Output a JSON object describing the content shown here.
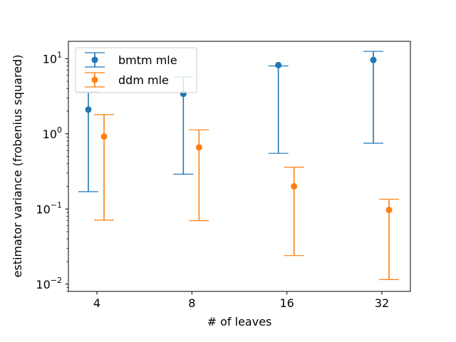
{
  "chart_data": {
    "type": "errorbar",
    "title": "",
    "xlabel": "# of leaves",
    "ylabel": "estimator variance (frobenius squared)",
    "yscale": "log",
    "ylim": [
      0.008,
      17
    ],
    "categories": [
      "4",
      "8",
      "16",
      "32"
    ],
    "yticks": [
      {
        "value": 0.01,
        "base": "10",
        "exp": "−2"
      },
      {
        "value": 0.1,
        "base": "10",
        "exp": "−1"
      },
      {
        "value": 1,
        "base": "10",
        "exp": "0"
      },
      {
        "value": 10,
        "base": "10",
        "exp": "1"
      }
    ],
    "legend_position": "top-left",
    "series": [
      {
        "name": "bmtm mle",
        "color": "#1f77b4",
        "values": [
          2.1,
          3.4,
          8.2,
          9.6
        ],
        "lower": [
          0.17,
          0.29,
          0.55,
          0.75
        ],
        "upper": [
          3.6,
          5.7,
          8.0,
          12.5
        ]
      },
      {
        "name": "ddm mle",
        "color": "#ff7f0e",
        "values": [
          0.92,
          0.66,
          0.2,
          0.097
        ],
        "lower": [
          0.071,
          0.07,
          0.024,
          0.0115
        ],
        "upper": [
          1.8,
          1.13,
          0.36,
          0.135
        ]
      }
    ]
  }
}
